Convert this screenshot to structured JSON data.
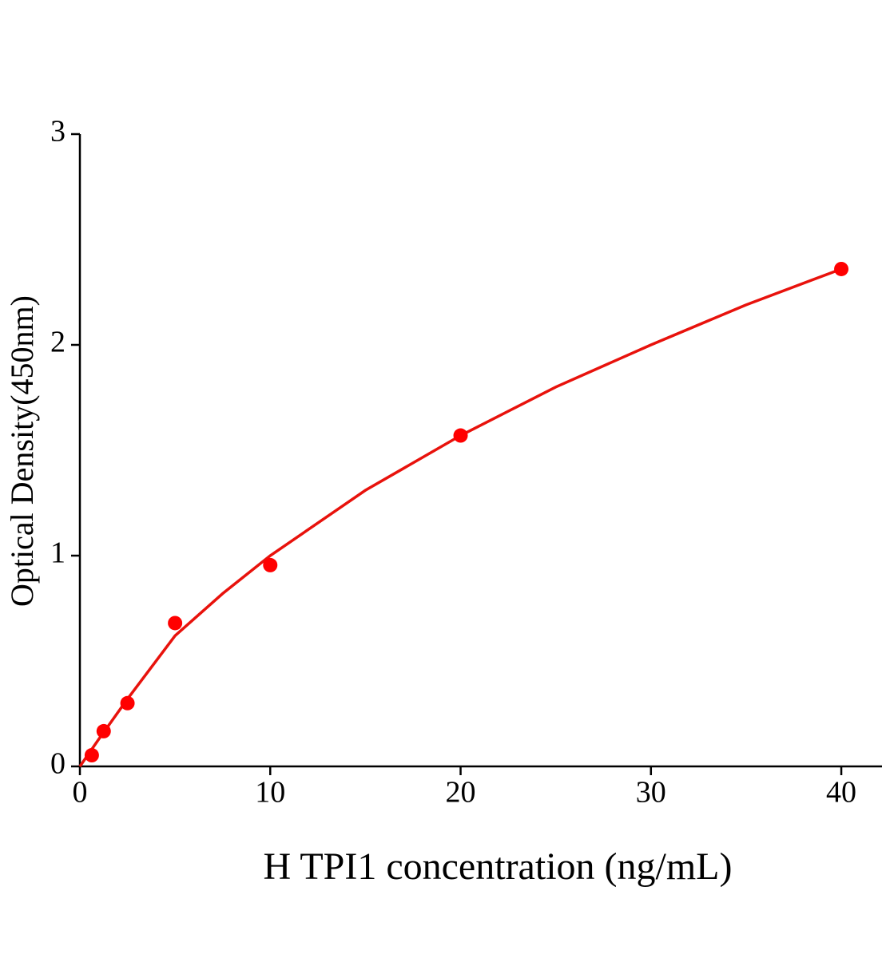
{
  "chart_data": {
    "type": "scatter",
    "x_label": "H TPI1 concentration (ng/mL)",
    "y_label": "Optical Density(450nm)",
    "xlim": [
      0,
      42
    ],
    "ylim": [
      0,
      3
    ],
    "xticks": [
      0,
      10,
      20,
      30,
      40
    ],
    "yticks": [
      0,
      1,
      2,
      3
    ],
    "series": [
      {
        "color": "#ff0000",
        "x": [
          0.625,
          1.25,
          2.5,
          5,
          10,
          20,
          40
        ],
        "values": [
          0.053,
          0.167,
          0.3,
          0.68,
          0.955,
          1.57,
          2.36
        ]
      }
    ],
    "fit": {
      "color": "#e8120c",
      "x": [
        0,
        1,
        2.5,
        5,
        7.5,
        10,
        15,
        20,
        25,
        30,
        35,
        40
      ],
      "values": [
        0,
        0.13,
        0.32,
        0.62,
        0.82,
        1.0,
        1.31,
        1.57,
        1.8,
        2.0,
        2.19,
        2.36
      ]
    }
  }
}
